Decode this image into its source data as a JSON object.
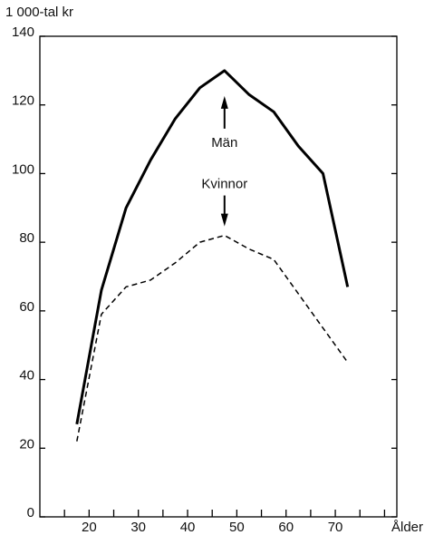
{
  "chart_data": {
    "type": "line",
    "y_axis_label": "1 000-tal kr",
    "x_axis_label": "Ålder",
    "x": [
      17.5,
      22.5,
      27.5,
      32.5,
      37.5,
      42.5,
      47.5,
      52.5,
      57.5,
      62.5,
      67.5,
      72.5
    ],
    "series": [
      {
        "name": "Män",
        "color": "#000000",
        "dash": "solid",
        "values": [
          27,
          66,
          90,
          104,
          116,
          125,
          130,
          123,
          118,
          108,
          100,
          67
        ]
      },
      {
        "name": "Kvinnor",
        "color": "#000000",
        "dash": "dashed",
        "values": [
          22,
          59,
          67,
          69,
          74,
          80,
          82,
          78,
          75,
          65,
          55,
          45
        ]
      }
    ],
    "xlim": [
      10,
      82.5
    ],
    "xticks": [
      20,
      30,
      40,
      50,
      60,
      70
    ],
    "xminorticks": [
      15,
      25,
      35,
      45,
      55,
      65,
      75,
      80
    ],
    "ylim": [
      0,
      140
    ],
    "yticks": [
      0,
      20,
      40,
      60,
      80,
      100,
      120,
      140
    ],
    "grid": false
  }
}
